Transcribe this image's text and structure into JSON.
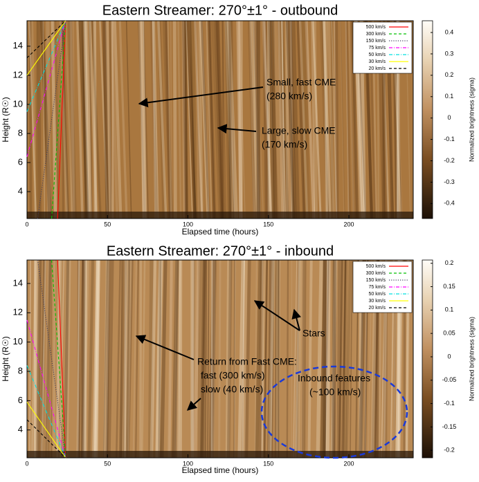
{
  "chart_data": [
    {
      "type": "heatmap",
      "title": "Eastern Streamer: 270°±1° - outbound",
      "xlabel": "Elapsed time (hours)",
      "ylabel": "Height (R☉)",
      "colorbar_label": "Normalized brightness (sigma)",
      "xlim": [
        0,
        240
      ],
      "ylim": [
        2.15,
        15.75
      ],
      "xticks": [
        0,
        50,
        100,
        150,
        200
      ],
      "yticks": [
        4,
        6,
        8,
        10,
        12,
        14
      ],
      "clim": [
        -0.47,
        0.455
      ],
      "cticks": [
        -0.4,
        -0.3,
        -0.2,
        -0.1,
        0,
        0.1,
        0.2,
        0.3,
        0.4
      ],
      "series": [
        {
          "name": "500 km/s",
          "color": "#ff0000",
          "dash": "solid",
          "x": [
            19,
            24
          ],
          "values": [
            2.15,
            15.75
          ]
        },
        {
          "name": "300 km/s",
          "color": "#00c000",
          "dash": "dashed",
          "x": [
            15.3,
            24
          ],
          "values": [
            2.15,
            15.75
          ]
        },
        {
          "name": "150 km/s",
          "color": "#404060",
          "dash": "dotted",
          "x": [
            6.6,
            24
          ],
          "values": [
            2.15,
            15.75
          ]
        },
        {
          "name": "75 km/s",
          "color": "#ff00ff",
          "dash": "dashdot",
          "x": [
            0,
            24
          ],
          "values": [
            6.4,
            15.75
          ]
        },
        {
          "name": "50 km/s",
          "color": "#00e0e0",
          "dash": "dashdot",
          "x": [
            0,
            24
          ],
          "values": [
            9.5,
            15.75
          ]
        },
        {
          "name": "30 km/s",
          "color": "#ffff00",
          "dash": "solid",
          "x": [
            0,
            24
          ],
          "values": [
            12,
            15.75
          ]
        },
        {
          "name": "20 km/s",
          "color": "#000000",
          "dash": "dashed",
          "x": [
            0,
            24
          ],
          "values": [
            13.2,
            15.75
          ]
        }
      ],
      "annotations": [
        {
          "lines": [
            "Small, fast CME",
            "(280 km/s)"
          ]
        },
        {
          "lines": [
            "Large, slow CME",
            "(170 km/s)"
          ]
        }
      ]
    },
    {
      "type": "heatmap",
      "title": "Eastern Streamer: 270°±1° - inbound",
      "xlabel": "Elapsed time (hours)",
      "ylabel": "Height (R☉)",
      "colorbar_label": "Normalized brightness (sigma)",
      "xlim": [
        0,
        240
      ],
      "ylim": [
        2.1,
        15.6
      ],
      "xticks": [
        0,
        50,
        100,
        150,
        200
      ],
      "yticks": [
        4,
        6,
        8,
        10,
        12,
        14
      ],
      "clim": [
        -0.216,
        0.207
      ],
      "cticks": [
        -0.2,
        -0.15,
        -0.1,
        -0.05,
        0,
        0.05,
        0.1,
        0.15,
        0.2
      ],
      "series": [
        {
          "name": "500 km/s",
          "color": "#ff0000",
          "dash": "solid",
          "x": [
            19,
            24
          ],
          "values": [
            15.6,
            2.1
          ]
        },
        {
          "name": "300 km/s",
          "color": "#00c000",
          "dash": "dashed",
          "x": [
            15.3,
            24
          ],
          "values": [
            15.6,
            2.1
          ]
        },
        {
          "name": "150 km/s",
          "color": "#404060",
          "dash": "dotted",
          "x": [
            6.6,
            24
          ],
          "values": [
            15.6,
            2.1
          ]
        },
        {
          "name": "75 km/s",
          "color": "#ff00ff",
          "dash": "dashdot",
          "x": [
            0,
            24
          ],
          "values": [
            11.5,
            2.1
          ]
        },
        {
          "name": "50 km/s",
          "color": "#00e0e0",
          "dash": "dashdot",
          "x": [
            0,
            24
          ],
          "values": [
            8.4,
            2.1
          ]
        },
        {
          "name": "30 km/s",
          "color": "#ffff00",
          "dash": "solid",
          "x": [
            0,
            24
          ],
          "values": [
            5.9,
            2.1
          ]
        },
        {
          "name": "20 km/s",
          "color": "#000000",
          "dash": "dashed",
          "x": [
            0,
            24
          ],
          "values": [
            4.7,
            2.1
          ]
        }
      ],
      "annotations": [
        {
          "lines": [
            "Stars"
          ]
        },
        {
          "lines": [
            "Return from Fast CME:",
            "fast (300 km/s)",
            "slow (40 km/s)"
          ]
        },
        {
          "lines": [
            "Inbound features",
            "(~100 km/s)"
          ]
        }
      ]
    }
  ]
}
